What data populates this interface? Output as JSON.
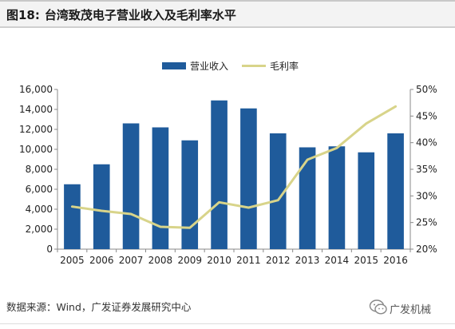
{
  "figure": {
    "number": "图18:",
    "title": "台湾致茂电子营业收入及毛利率水平"
  },
  "source_text": "数据来源：Wind，广发证券发展研究中心",
  "watermark": {
    "text": "广发机械",
    "icon": "wechat-icon"
  },
  "colors": {
    "bar": "#1f5b9b",
    "line": "#d8d48a",
    "axis": "#888888",
    "text": "#222222"
  },
  "chart_data": {
    "type": "bar",
    "categories": [
      "2005",
      "2006",
      "2007",
      "2008",
      "2009",
      "2010",
      "2011",
      "2012",
      "2013",
      "2014",
      "2015",
      "2016"
    ],
    "series": [
      {
        "name": "营业收入",
        "type": "bar",
        "axis": "left",
        "values": [
          6500,
          8500,
          12600,
          12200,
          10900,
          14900,
          14100,
          11600,
          10200,
          10300,
          9700,
          11600
        ]
      },
      {
        "name": "毛利率",
        "type": "line",
        "axis": "right",
        "values": [
          28.0,
          27.2,
          26.6,
          24.2,
          24.0,
          28.8,
          27.8,
          29.2,
          36.8,
          39.0,
          43.6,
          46.8
        ]
      }
    ],
    "y_left": {
      "min": 0,
      "max": 16000,
      "step": 2000,
      "ticks": [
        "0",
        "2,000",
        "4,000",
        "6,000",
        "8,000",
        "10,000",
        "12,000",
        "14,000",
        "16,000"
      ]
    },
    "y_right": {
      "min": 20,
      "max": 50,
      "step": 5,
      "ticks": [
        "20%",
        "25%",
        "30%",
        "35%",
        "40%",
        "45%",
        "50%"
      ]
    },
    "legend": {
      "position": "top-center",
      "entries": [
        "营业收入",
        "毛利率"
      ]
    },
    "grid": false
  }
}
